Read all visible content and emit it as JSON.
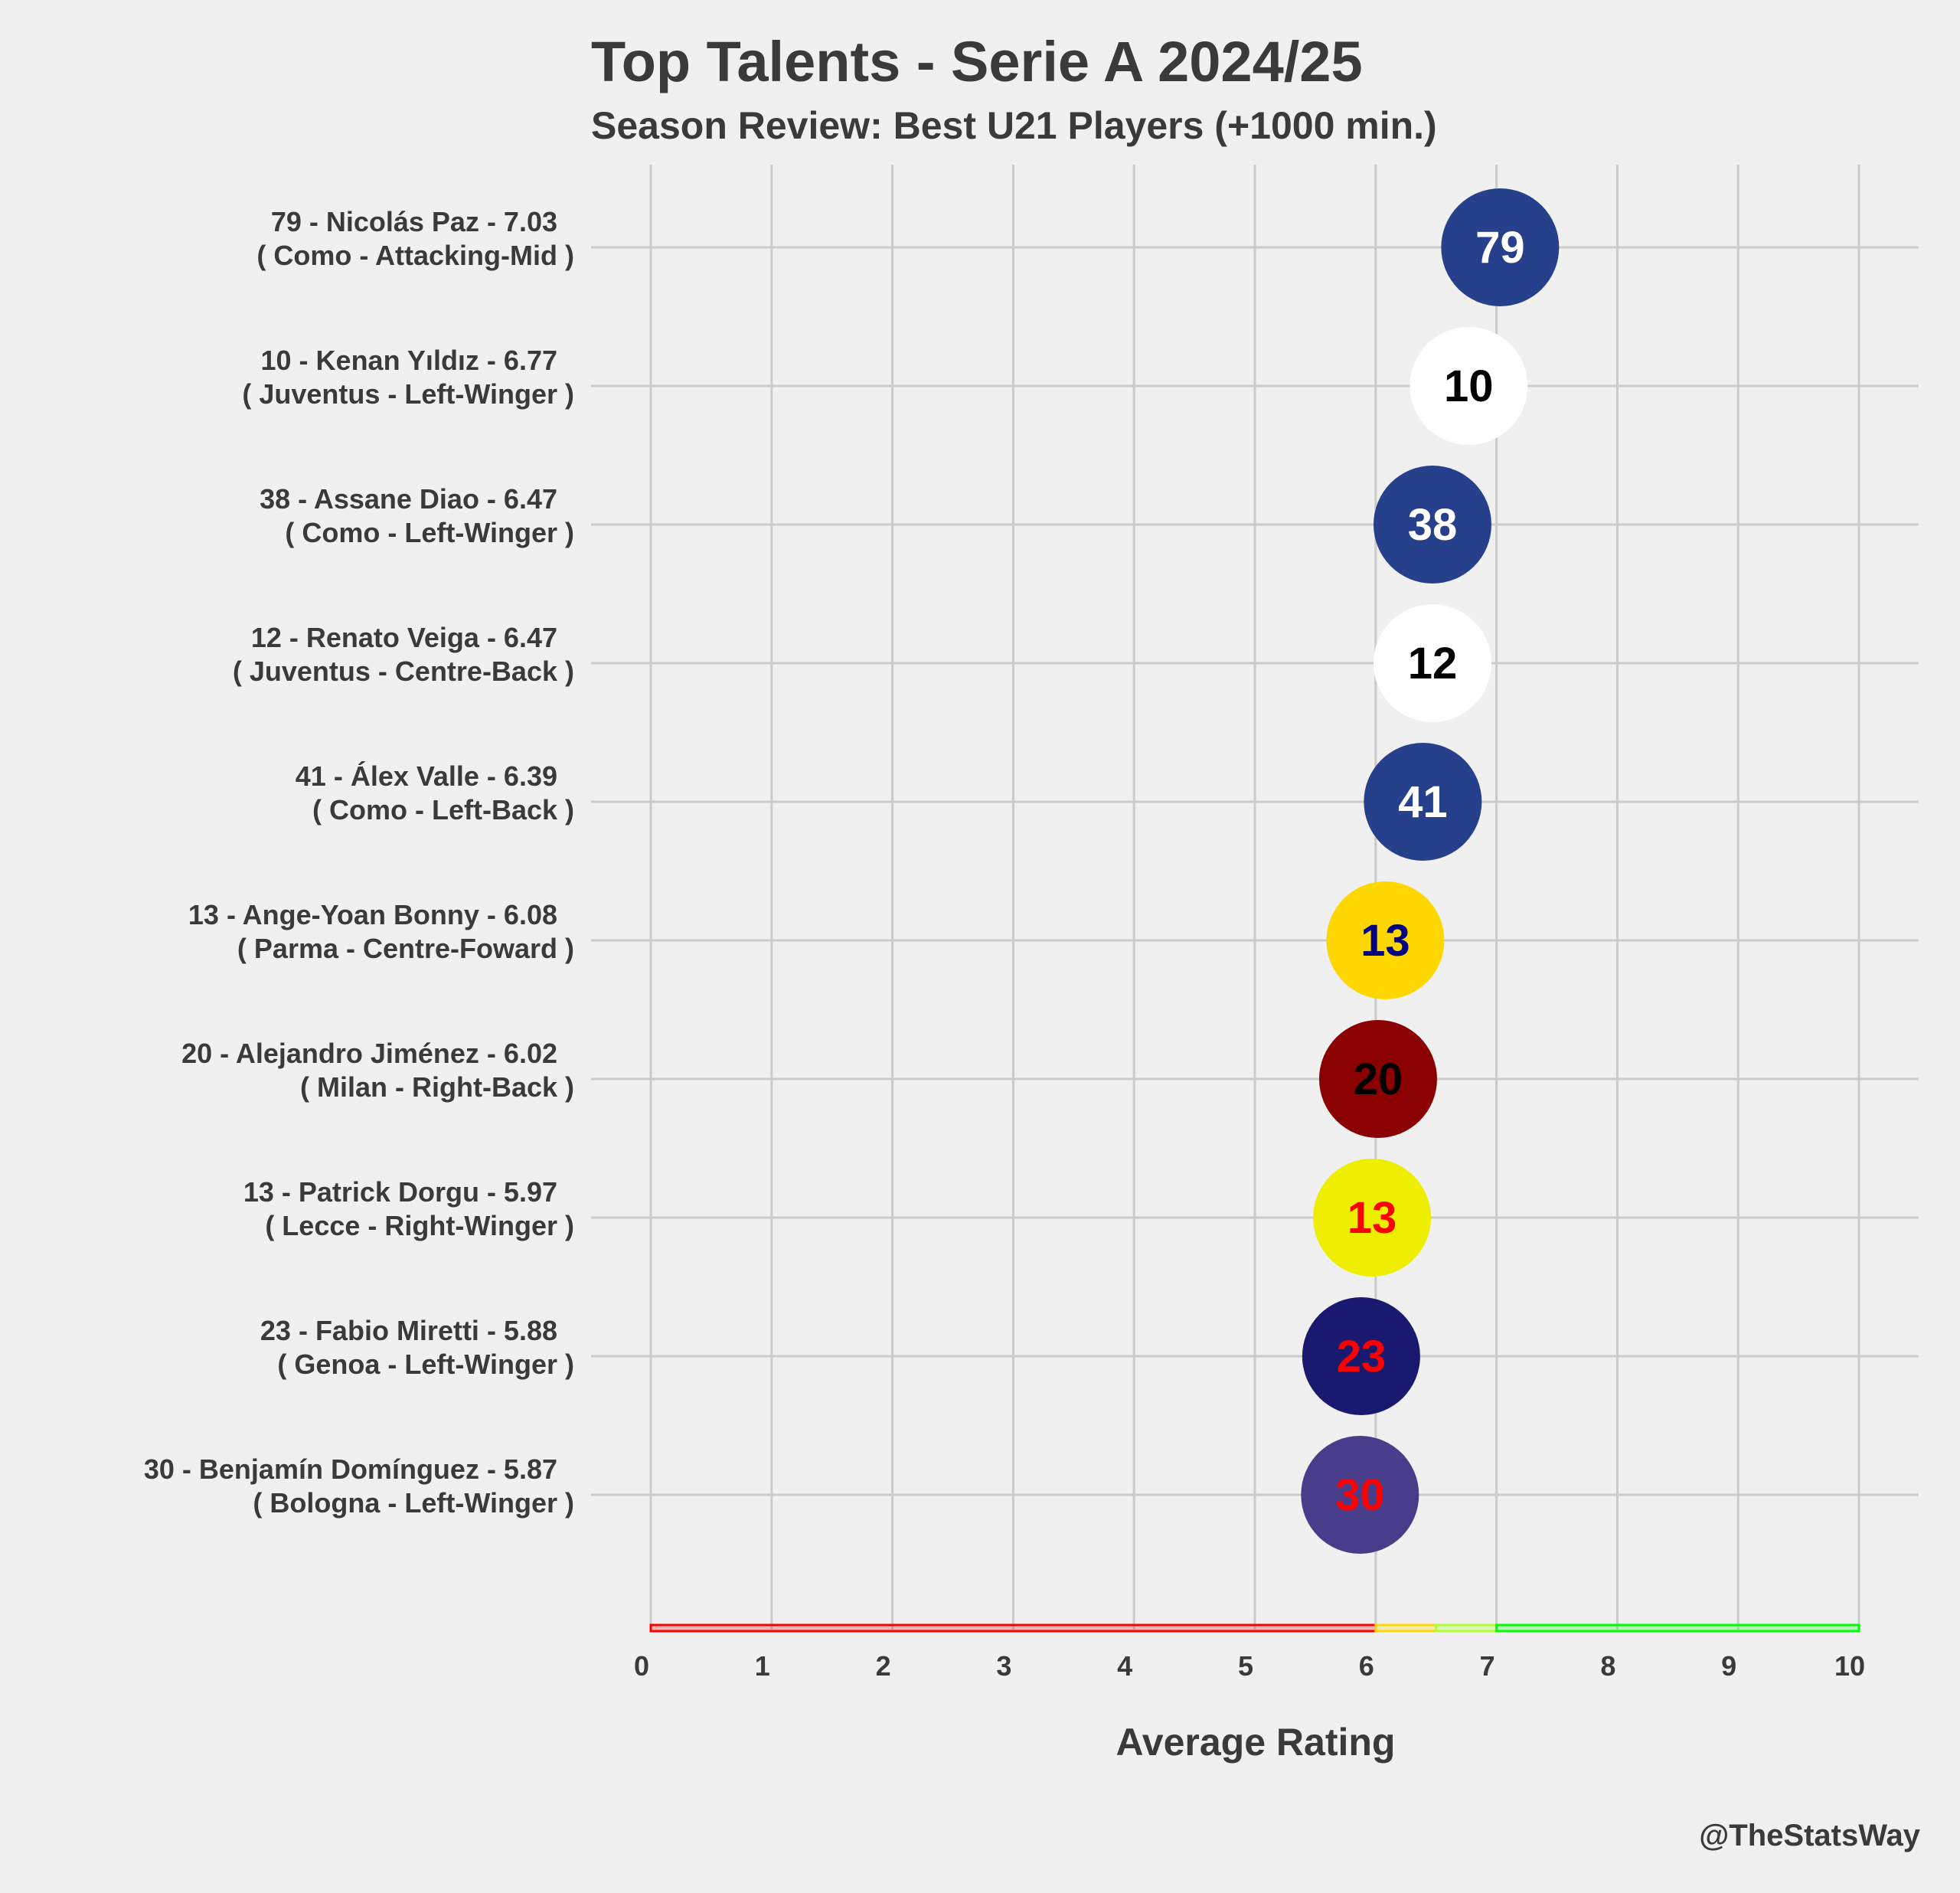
{
  "title": "Top Talents - Serie A 2024/25",
  "subtitle": "Season Review: Best U21 Players (+1000 min.)",
  "credit": "@TheStatsWay",
  "chart_data": {
    "type": "scatter",
    "title": "Top Talents - Serie A 2024/25",
    "subtitle": "Season Review: Best U21 Players (+1000 min.)",
    "xlabel": "Average Rating",
    "ylabel": "",
    "xlim": [
      0,
      10
    ],
    "xticks": [
      0,
      1,
      2,
      3,
      4,
      5,
      6,
      7,
      8,
      9,
      10
    ],
    "grid": true,
    "points": [
      {
        "line1": "79 - Nicolás Paz - 7.03",
        "line2": "( Como - Attacking-Mid )",
        "number": "79",
        "rating": 7.03,
        "fill": "#27408b",
        "text_color": "#ffffff"
      },
      {
        "line1": "10 - Kenan Yıldız - 6.77",
        "line2": "( Juventus - Left-Winger )",
        "number": "10",
        "rating": 6.77,
        "fill": "#ffffff",
        "text_color": "#000000"
      },
      {
        "line1": "38 - Assane Diao - 6.47",
        "line2": "( Como - Left-Winger )",
        "number": "38",
        "rating": 6.47,
        "fill": "#27408b",
        "text_color": "#ffffff"
      },
      {
        "line1": "12 - Renato Veiga - 6.47",
        "line2": "( Juventus - Centre-Back )",
        "number": "12",
        "rating": 6.47,
        "fill": "#ffffff",
        "text_color": "#000000"
      },
      {
        "line1": "41 - Álex Valle - 6.39",
        "line2": "( Como - Left-Back )",
        "number": "41",
        "rating": 6.39,
        "fill": "#27408b",
        "text_color": "#ffffff"
      },
      {
        "line1": "13 - Ange-Yoan Bonny - 6.08",
        "line2": "( Parma - Centre-Foward )",
        "number": "13",
        "rating": 6.08,
        "fill": "#ffd700",
        "text_color": "#000080"
      },
      {
        "line1": "20 - Alejandro Jiménez - 6.02",
        "line2": "( Milan - Right-Back )",
        "number": "20",
        "rating": 6.02,
        "fill": "#8b0000",
        "text_color": "#000000"
      },
      {
        "line1": "13 - Patrick Dorgu - 5.97",
        "line2": "( Lecce - Right-Winger )",
        "number": "13",
        "rating": 5.97,
        "fill": "#eeee00",
        "text_color": "#ff0000"
      },
      {
        "line1": "23 - Fabio Miretti - 5.88",
        "line2": "( Genoa - Left-Winger )",
        "number": "23",
        "rating": 5.88,
        "fill": "#191970",
        "text_color": "#ff0000"
      },
      {
        "line1": "30 - Benjamín Domínguez - 5.87",
        "line2": "( Bologna - Left-Winger )",
        "number": "30",
        "rating": 5.87,
        "fill": "#483d8b",
        "text_color": "#ff0000"
      }
    ],
    "rating_bands": [
      {
        "from": 0,
        "to": 6,
        "color": "#ff0000"
      },
      {
        "from": 6,
        "to": 6.5,
        "color": "#ffd700"
      },
      {
        "from": 6.5,
        "to": 7,
        "color": "#adff2f"
      },
      {
        "from": 7,
        "to": 10,
        "color": "#00ff00"
      }
    ]
  }
}
